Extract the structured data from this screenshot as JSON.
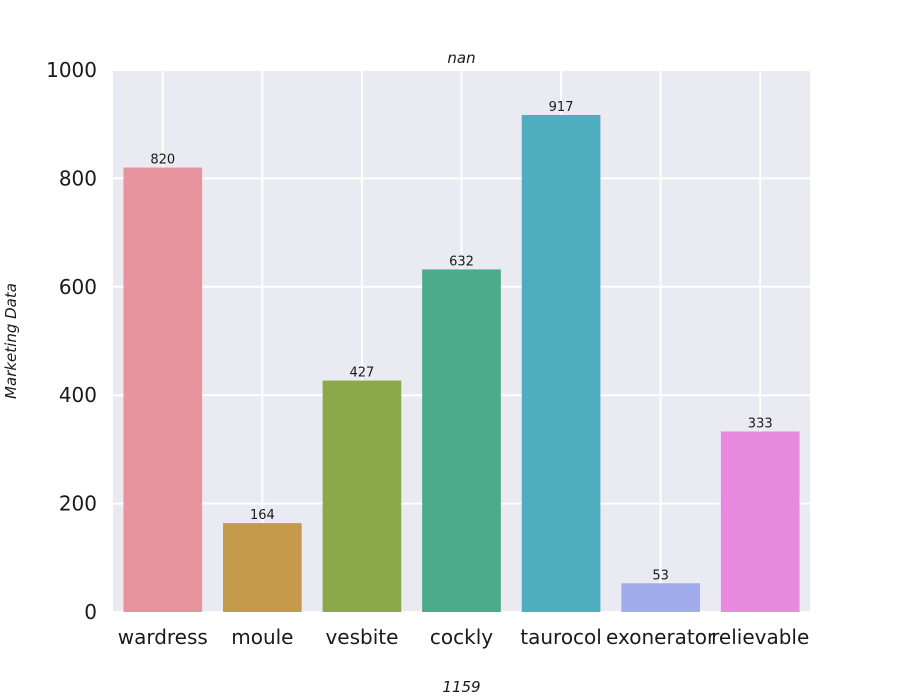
{
  "chart_data": {
    "type": "bar",
    "title": "nan",
    "xlabel": "1159",
    "ylabel": "Marketing Data",
    "categories": [
      "wardress",
      "moule",
      "vesbite",
      "cockly",
      "taurocol",
      "exonerator",
      "relievable"
    ],
    "values": [
      820,
      164,
      427,
      632,
      917,
      53,
      333
    ],
    "colors": [
      "#e8949f",
      "#c49a4a",
      "#8aa948",
      "#4aaa89",
      "#4eadbe",
      "#a0aceb",
      "#e78ae0"
    ],
    "ylim": [
      0,
      1000
    ],
    "yticks": [
      0,
      200,
      400,
      600,
      800,
      1000
    ],
    "grid": true,
    "legend": "none",
    "background": "#eaeaf2"
  }
}
